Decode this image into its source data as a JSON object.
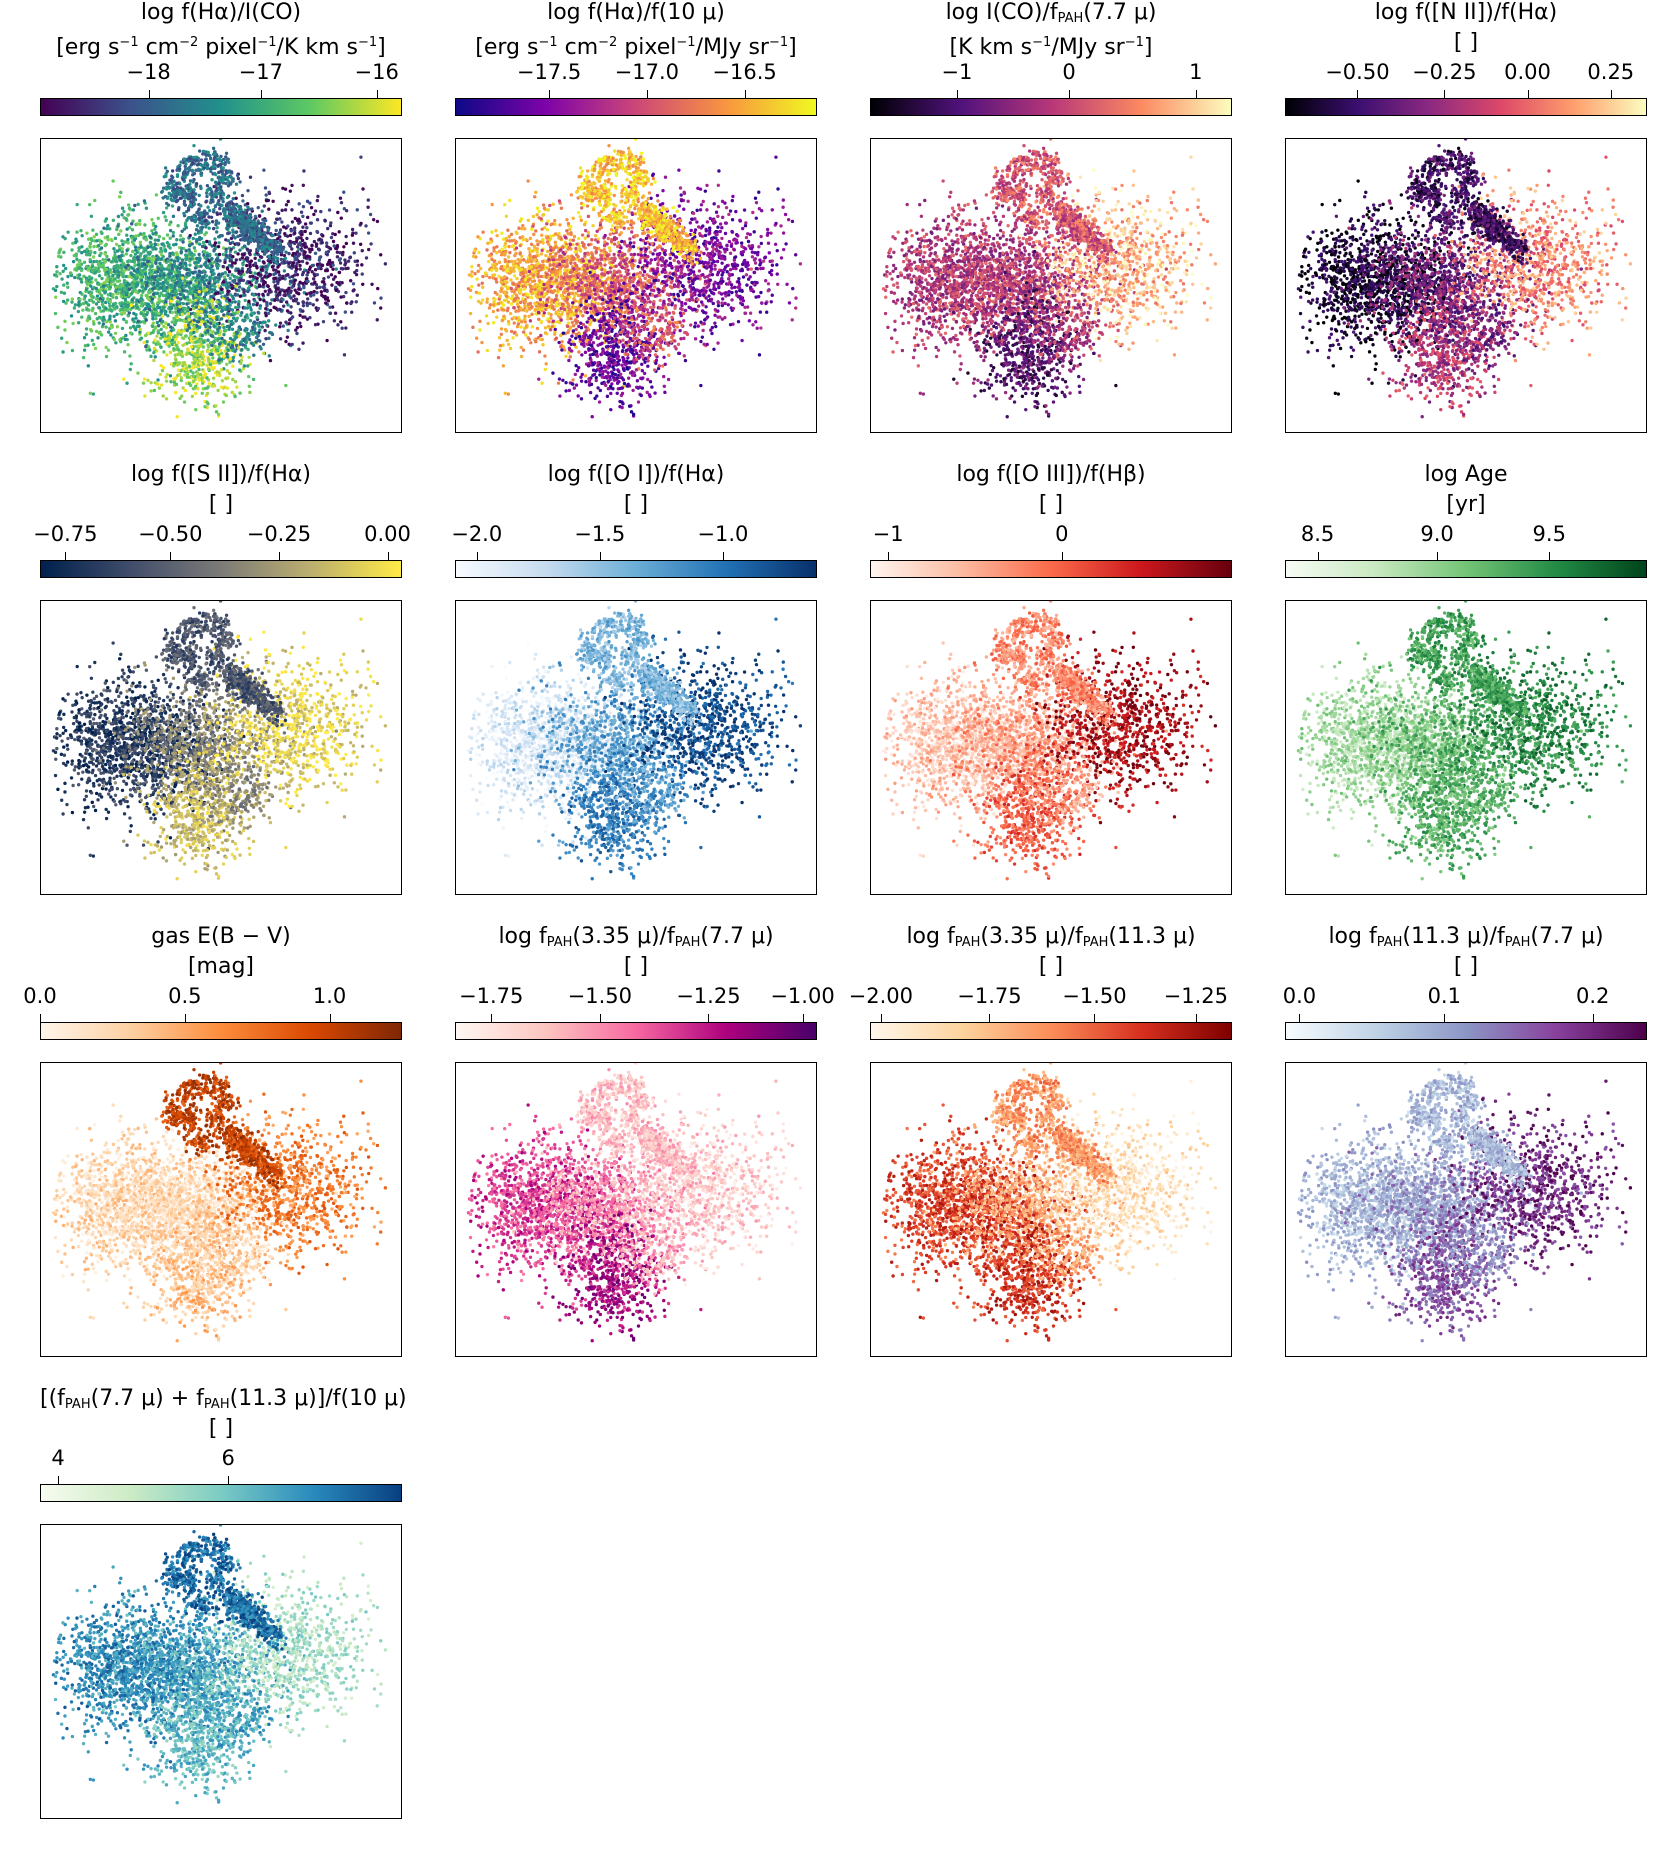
{
  "chart_data": [
    {
      "type": "scatter",
      "title": "log f(Hα)/I(CO)",
      "unit": "[erg s⁻¹ cm⁻² pixel⁻¹/K km s⁻¹]",
      "ticks": [
        "−18",
        "−17",
        "−16"
      ],
      "tick_pos": [
        0.3,
        0.61,
        0.93
      ],
      "cmap": [
        "#440154",
        "#3b528b",
        "#21918c",
        "#5ec962",
        "#fde725"
      ],
      "regions": {
        "left": 0.65,
        "top": 0.35,
        "right": 0.1,
        "bottom": 0.85,
        "center": 0.45
      }
    },
    {
      "type": "scatter",
      "title": "log f(Hα)/f(10 μ)",
      "unit": "[erg s⁻¹ cm⁻² pixel⁻¹/MJy sr⁻¹]",
      "ticks": [
        "−17.5",
        "−17.0",
        "−16.5"
      ],
      "tick_pos": [
        0.26,
        0.53,
        0.8
      ],
      "cmap": [
        "#0d0887",
        "#7e03a8",
        "#cc4778",
        "#f89540",
        "#f0f921"
      ],
      "regions": {
        "left": 0.8,
        "top": 0.85,
        "right": 0.25,
        "bottom": 0.2,
        "center": 0.55
      }
    },
    {
      "type": "scatter",
      "title": "log I(CO)/f_PAH(7.7 μ)",
      "unit": "[K km s⁻¹/MJy sr⁻¹]",
      "ticks": [
        "−1",
        "0",
        "1"
      ],
      "tick_pos": [
        0.24,
        0.55,
        0.9
      ],
      "cmap": [
        "#000004",
        "#51127c",
        "#b73779",
        "#fc8961",
        "#fcfdbf"
      ],
      "regions": {
        "left": 0.5,
        "top": 0.6,
        "right": 0.85,
        "bottom": 0.25,
        "center": 0.5
      }
    },
    {
      "type": "scatter",
      "title": "log f([N II])/f(Hα)",
      "unit": "[ ]",
      "ticks": [
        "−0.50",
        "−0.25",
        "0.00",
        "0.25"
      ],
      "tick_pos": [
        0.2,
        0.44,
        0.67,
        0.9
      ],
      "cmap": [
        "#000004",
        "#3b0f70",
        "#8c2981",
        "#de4968",
        "#fe9f6d",
        "#fcfdbf"
      ],
      "regions": {
        "left": 0.1,
        "top": 0.2,
        "right": 0.75,
        "bottom": 0.5,
        "center": 0.35
      }
    },
    {
      "type": "scatter",
      "title": "log f([S II])/f(Hα)",
      "unit": "[ ]",
      "ticks": [
        "−0.75",
        "−0.50",
        "−0.25",
        "0.00"
      ],
      "tick_pos": [
        0.07,
        0.36,
        0.66,
        0.96
      ],
      "cmap": [
        "#00204d",
        "#414d6b",
        "#7c7b78",
        "#bcaf6f",
        "#ffea46"
      ],
      "regions": {
        "left": 0.15,
        "top": 0.3,
        "right": 0.9,
        "bottom": 0.8,
        "center": 0.55
      }
    },
    {
      "type": "scatter",
      "title": "log f([O I])/f(Hα)",
      "unit": "[ ]",
      "ticks": [
        "−2.0",
        "−1.5",
        "−1.0"
      ],
      "tick_pos": [
        0.06,
        0.4,
        0.74
      ],
      "cmap": [
        "#f7fbff",
        "#c6dbef",
        "#6baed6",
        "#2171b5",
        "#08306b"
      ],
      "regions": {
        "left": 0.15,
        "top": 0.45,
        "right": 0.9,
        "bottom": 0.7,
        "center": 0.55
      }
    },
    {
      "type": "scatter",
      "title": "log f([O III])/f(Hβ)",
      "unit": "[ ]",
      "ticks": [
        "−1",
        "0"
      ],
      "tick_pos": [
        0.05,
        0.53
      ],
      "cmap": [
        "#fff5f0",
        "#fcbba1",
        "#fb6a4a",
        "#cb181d",
        "#67000d"
      ],
      "regions": {
        "left": 0.2,
        "top": 0.4,
        "right": 0.85,
        "bottom": 0.55,
        "center": 0.35
      }
    },
    {
      "type": "scatter",
      "title": "log Age",
      "unit": "[yr]",
      "ticks": [
        "8.5",
        "9.0",
        "9.5"
      ],
      "tick_pos": [
        0.09,
        0.42,
        0.73
      ],
      "cmap": [
        "#f7fcf5",
        "#c7e9c0",
        "#74c476",
        "#238b45",
        "#00441b"
      ],
      "regions": {
        "left": 0.35,
        "top": 0.65,
        "right": 0.75,
        "bottom": 0.6,
        "center": 0.55
      }
    },
    {
      "type": "scatter",
      "title": "gas E(B − V)",
      "unit": "[mag]",
      "ticks": [
        "0.0",
        "0.5",
        "1.0"
      ],
      "tick_pos": [
        0.0,
        0.4,
        0.8
      ],
      "cmap": [
        "#fff5eb",
        "#fdd0a2",
        "#fd8d3c",
        "#d94801",
        "#7f2704"
      ],
      "regions": {
        "left": 0.2,
        "top": 0.8,
        "right": 0.55,
        "bottom": 0.3,
        "center": 0.2
      }
    },
    {
      "type": "scatter",
      "title": "log f_PAH(3.35 μ)/f_PAH(7.7 μ)",
      "unit": "[ ]",
      "ticks": [
        "−1.75",
        "−1.50",
        "−1.25",
        "−1.00"
      ],
      "tick_pos": [
        0.1,
        0.4,
        0.7,
        0.96
      ],
      "cmap": [
        "#fff7f3",
        "#fcc5c0",
        "#f768a1",
        "#ae017e",
        "#49006a"
      ],
      "regions": {
        "left": 0.6,
        "top": 0.25,
        "right": 0.2,
        "bottom": 0.75,
        "center": 0.35
      }
    },
    {
      "type": "scatter",
      "title": "log f_PAH(3.35 μ)/f_PAH(11.3 μ)",
      "unit": "[ ]",
      "ticks": [
        "−2.00",
        "−1.75",
        "−1.50",
        "−1.25"
      ],
      "tick_pos": [
        0.03,
        0.33,
        0.62,
        0.9
      ],
      "cmap": [
        "#fff7ec",
        "#fdd49e",
        "#fc8d59",
        "#d7301f",
        "#7f0000"
      ],
      "regions": {
        "left": 0.7,
        "top": 0.45,
        "right": 0.15,
        "bottom": 0.75,
        "center": 0.4
      }
    },
    {
      "type": "scatter",
      "title": "log f_PAH(11.3 μ)/f_PAH(7.7 μ)",
      "unit": "[ ]",
      "ticks": [
        "0.0",
        "0.1",
        "0.2"
      ],
      "tick_pos": [
        0.04,
        0.44,
        0.85
      ],
      "cmap": [
        "#f7fcfd",
        "#bfd3e6",
        "#8c96c6",
        "#88419d",
        "#4d004b"
      ],
      "regions": {
        "left": 0.35,
        "top": 0.35,
        "right": 0.85,
        "bottom": 0.7,
        "center": 0.5
      }
    },
    {
      "type": "scatter",
      "title": "[(f_PAH(7.7 μ) + f_PAH(11.3 μ)]/f(10 μ)",
      "unit": "[ ]",
      "ticks": [
        "4",
        "6"
      ],
      "tick_pos": [
        0.05,
        0.52
      ],
      "cmap": [
        "#f7fcf0",
        "#ccebc5",
        "#7bccc4",
        "#2b8cbe",
        "#084081"
      ],
      "regions": {
        "left": 0.75,
        "top": 0.85,
        "right": 0.35,
        "bottom": 0.55,
        "center": 0.65
      }
    }
  ]
}
